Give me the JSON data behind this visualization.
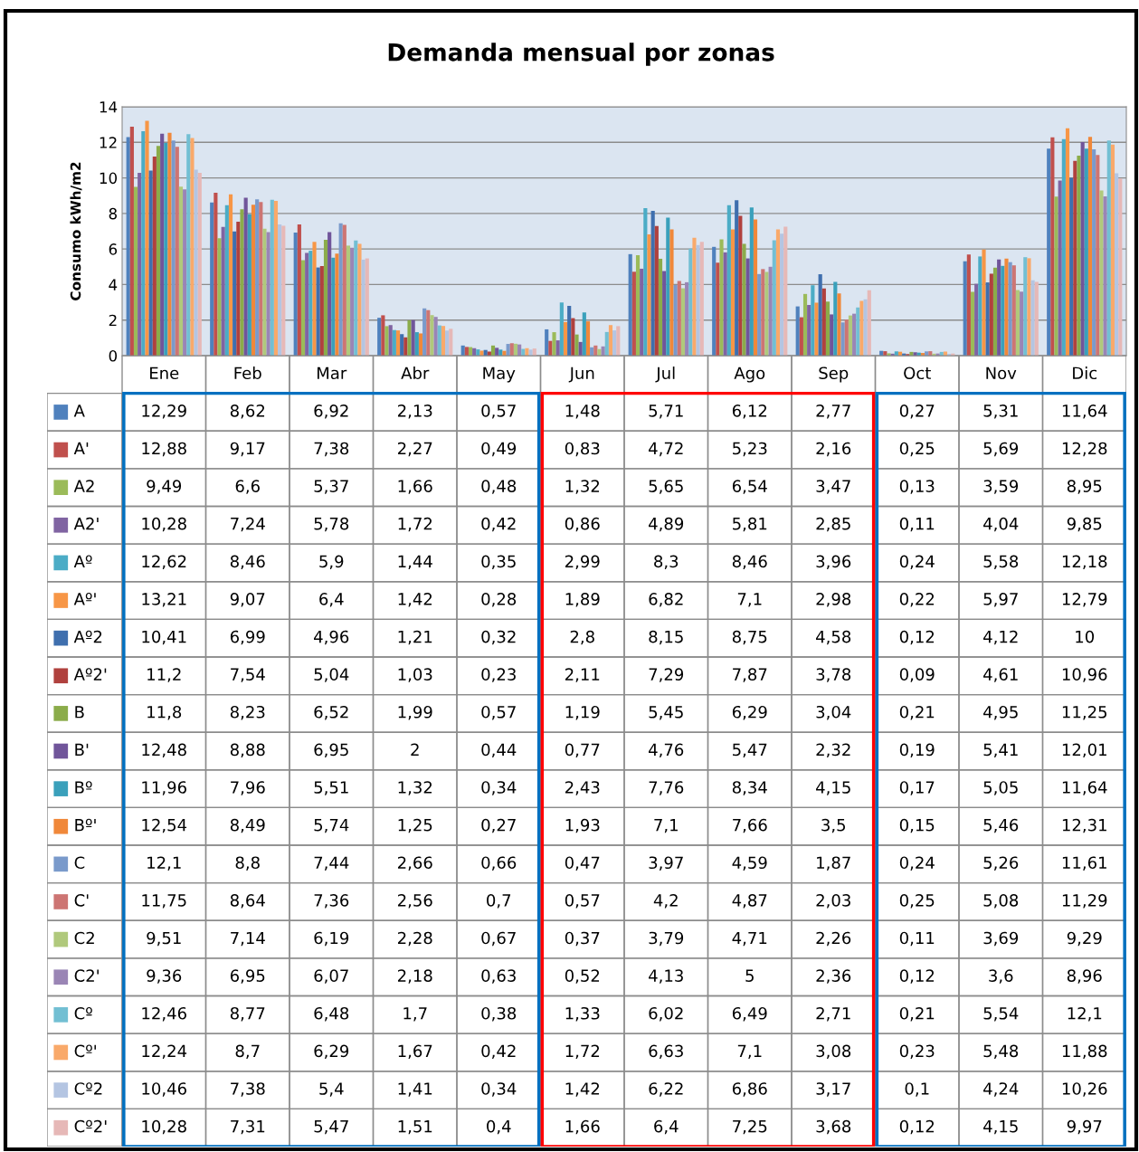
{
  "chart_data": {
    "type": "bar",
    "title": "Demanda mensual por zonas",
    "ylabel": "Consumo kWh/m2",
    "categories": [
      "Ene",
      "Feb",
      "Mar",
      "Abr",
      "May",
      "Jun",
      "Jul",
      "Ago",
      "Sep",
      "Oct",
      "Nov",
      "Dic"
    ],
    "ylim": [
      0,
      14
    ],
    "yticks": [
      0,
      2,
      4,
      6,
      8,
      10,
      12,
      14
    ],
    "grid": "y",
    "legend": "bottom",
    "series": [
      {
        "name": "A",
        "color": "#4f81bd",
        "values": [
          12.29,
          8.62,
          6.92,
          2.13,
          0.57,
          1.48,
          5.71,
          6.12,
          2.77,
          0.27,
          5.31,
          11.64
        ],
        "value_labels": [
          "12,29",
          "8,62",
          "6,92",
          "2,13",
          "0,57",
          "1,48",
          "5,71",
          "6,12",
          "2,77",
          "0,27",
          "5,31",
          "11,64"
        ]
      },
      {
        "name": "A'",
        "color": "#c0504d",
        "values": [
          12.88,
          9.17,
          7.38,
          2.27,
          0.49,
          0.83,
          4.72,
          5.23,
          2.16,
          0.25,
          5.69,
          12.28
        ],
        "value_labels": [
          "12,88",
          "9,17",
          "7,38",
          "2,27",
          "0,49",
          "0,83",
          "4,72",
          "5,23",
          "2,16",
          "0,25",
          "5,69",
          "12,28"
        ]
      },
      {
        "name": "A2",
        "color": "#9bbb59",
        "values": [
          9.49,
          6.6,
          5.37,
          1.66,
          0.48,
          1.32,
          5.65,
          6.54,
          3.47,
          0.13,
          3.59,
          8.95
        ],
        "value_labels": [
          "9,49",
          "6,6",
          "5,37",
          "1,66",
          "0,48",
          "1,32",
          "5,65",
          "6,54",
          "3,47",
          "0,13",
          "3,59",
          "8,95"
        ]
      },
      {
        "name": "A2'",
        "color": "#8064a2",
        "values": [
          10.28,
          7.24,
          5.78,
          1.72,
          0.42,
          0.86,
          4.89,
          5.81,
          2.85,
          0.11,
          4.04,
          9.85
        ],
        "value_labels": [
          "10,28",
          "7,24",
          "5,78",
          "1,72",
          "0,42",
          "0,86",
          "4,89",
          "5,81",
          "2,85",
          "0,11",
          "4,04",
          "9,85"
        ]
      },
      {
        "name": "Aº",
        "color": "#4bacc6",
        "values": [
          12.62,
          8.46,
          5.9,
          1.44,
          0.35,
          2.99,
          8.3,
          8.46,
          3.96,
          0.24,
          5.58,
          12.18
        ],
        "value_labels": [
          "12,62",
          "8,46",
          "5,9",
          "1,44",
          "0,35",
          "2,99",
          "8,3",
          "8,46",
          "3,96",
          "0,24",
          "5,58",
          "12,18"
        ]
      },
      {
        "name": "Aº'",
        "color": "#f79646",
        "values": [
          13.21,
          9.07,
          6.4,
          1.42,
          0.28,
          1.89,
          6.82,
          7.1,
          2.98,
          0.22,
          5.97,
          12.79
        ],
        "value_labels": [
          "13,21",
          "9,07",
          "6,4",
          "1,42",
          "0,28",
          "1,89",
          "6,82",
          "7,1",
          "2,98",
          "0,22",
          "5,97",
          "12,79"
        ]
      },
      {
        "name": "Aº2",
        "color": "#3f6fae",
        "values": [
          10.41,
          6.99,
          4.96,
          1.21,
          0.32,
          2.8,
          8.15,
          8.75,
          4.58,
          0.12,
          4.12,
          10
        ],
        "value_labels": [
          "10,41",
          "6,99",
          "4,96",
          "1,21",
          "0,32",
          "2,8",
          "8,15",
          "8,75",
          "4,58",
          "0,12",
          "4,12",
          "10"
        ]
      },
      {
        "name": "Aº2'",
        "color": "#b0413e",
        "values": [
          11.2,
          7.54,
          5.04,
          1.03,
          0.23,
          2.11,
          7.29,
          7.87,
          3.78,
          0.09,
          4.61,
          10.96
        ],
        "value_labels": [
          "11,2",
          "7,54",
          "5,04",
          "1,03",
          "0,23",
          "2,11",
          "7,29",
          "7,87",
          "3,78",
          "0,09",
          "4,61",
          "10,96"
        ]
      },
      {
        "name": "B",
        "color": "#8bac4a",
        "values": [
          11.8,
          8.23,
          6.52,
          1.99,
          0.57,
          1.19,
          5.45,
          6.29,
          3.04,
          0.21,
          4.95,
          11.25
        ],
        "value_labels": [
          "11,8",
          "8,23",
          "6,52",
          "1,99",
          "0,57",
          "1,19",
          "5,45",
          "6,29",
          "3,04",
          "0,21",
          "4,95",
          "11,25"
        ]
      },
      {
        "name": "B'",
        "color": "#70559a",
        "values": [
          12.48,
          8.88,
          6.95,
          2,
          0.44,
          0.77,
          4.76,
          5.47,
          2.32,
          0.19,
          5.41,
          12.01
        ],
        "value_labels": [
          "12,48",
          "8,88",
          "6,95",
          "2",
          "0,44",
          "0,77",
          "4,76",
          "5,47",
          "2,32",
          "0,19",
          "5,41",
          "12,01"
        ]
      },
      {
        "name": "Bº",
        "color": "#3aa0bb",
        "values": [
          11.96,
          7.96,
          5.51,
          1.32,
          0.34,
          2.43,
          7.76,
          8.34,
          4.15,
          0.17,
          5.05,
          11.64
        ],
        "value_labels": [
          "11,96",
          "7,96",
          "5,51",
          "1,32",
          "0,34",
          "2,43",
          "7,76",
          "8,34",
          "4,15",
          "0,17",
          "5,05",
          "11,64"
        ]
      },
      {
        "name": "Bº'",
        "color": "#f0883a",
        "values": [
          12.54,
          8.49,
          5.74,
          1.25,
          0.27,
          1.93,
          7.1,
          7.66,
          3.5,
          0.15,
          5.46,
          12.31
        ],
        "value_labels": [
          "12,54",
          "8,49",
          "5,74",
          "1,25",
          "0,27",
          "1,93",
          "7,1",
          "7,66",
          "3,5",
          "0,15",
          "5,46",
          "12,31"
        ]
      },
      {
        "name": "C",
        "color": "#7a9acb",
        "values": [
          12.1,
          8.8,
          7.44,
          2.66,
          0.66,
          0.47,
          3.97,
          4.59,
          1.87,
          0.24,
          5.26,
          11.61
        ],
        "value_labels": [
          "12,1",
          "8,8",
          "7,44",
          "2,66",
          "0,66",
          "0,47",
          "3,97",
          "4,59",
          "1,87",
          "0,24",
          "5,26",
          "11,61"
        ]
      },
      {
        "name": "C'",
        "color": "#cd7573",
        "values": [
          11.75,
          8.64,
          7.36,
          2.56,
          0.7,
          0.57,
          4.2,
          4.87,
          2.03,
          0.25,
          5.08,
          11.29
        ],
        "value_labels": [
          "11,75",
          "8,64",
          "7,36",
          "2,56",
          "0,7",
          "0,57",
          "4,2",
          "4,87",
          "2,03",
          "0,25",
          "5,08",
          "11,29"
        ]
      },
      {
        "name": "C2",
        "color": "#b0c97c",
        "values": [
          9.51,
          7.14,
          6.19,
          2.28,
          0.67,
          0.37,
          3.79,
          4.71,
          2.26,
          0.11,
          3.69,
          9.29
        ],
        "value_labels": [
          "9,51",
          "7,14",
          "6,19",
          "2,28",
          "0,67",
          "0,37",
          "3,79",
          "4,71",
          "2,26",
          "0,11",
          "3,69",
          "9,29"
        ]
      },
      {
        "name": "C2'",
        "color": "#9a85b5",
        "values": [
          9.36,
          6.95,
          6.07,
          2.18,
          0.63,
          0.52,
          4.13,
          5,
          2.36,
          0.12,
          3.6,
          8.96
        ],
        "value_labels": [
          "9,36",
          "6,95",
          "6,07",
          "2,18",
          "0,63",
          "0,52",
          "4,13",
          "5",
          "2,36",
          "0,12",
          "3,6",
          "8,96"
        ]
      },
      {
        "name": "Cº",
        "color": "#72bfd3",
        "values": [
          12.46,
          8.77,
          6.48,
          1.7,
          0.38,
          1.33,
          6.02,
          6.49,
          2.71,
          0.21,
          5.54,
          12.1
        ],
        "value_labels": [
          "12,46",
          "8,77",
          "6,48",
          "1,7",
          "0,38",
          "1,33",
          "6,02",
          "6,49",
          "2,71",
          "0,21",
          "5,54",
          "12,1"
        ]
      },
      {
        "name": "Cº'",
        "color": "#f9a96a",
        "values": [
          12.24,
          8.7,
          6.29,
          1.67,
          0.42,
          1.72,
          6.63,
          7.1,
          3.08,
          0.23,
          5.48,
          11.88
        ],
        "value_labels": [
          "12,24",
          "8,7",
          "6,29",
          "1,67",
          "0,42",
          "1,72",
          "6,63",
          "7,1",
          "3,08",
          "0,23",
          "5,48",
          "11,88"
        ]
      },
      {
        "name": "Cº2",
        "color": "#b4c5e2",
        "values": [
          10.46,
          7.38,
          5.4,
          1.41,
          0.34,
          1.42,
          6.22,
          6.86,
          3.17,
          0.1,
          4.24,
          10.26
        ],
        "value_labels": [
          "10,46",
          "7,38",
          "5,4",
          "1,41",
          "0,34",
          "1,42",
          "6,22",
          "6,86",
          "3,17",
          "0,1",
          "4,24",
          "10,26"
        ]
      },
      {
        "name": "Cº2'",
        "color": "#e6b8b7",
        "values": [
          10.28,
          7.31,
          5.47,
          1.51,
          0.4,
          1.66,
          6.4,
          7.25,
          3.68,
          0.12,
          4.15,
          9.97
        ],
        "value_labels": [
          "10,28",
          "7,31",
          "5,47",
          "1,51",
          "0,4",
          "1,66",
          "6,4",
          "7,25",
          "3,68",
          "0,12",
          "4,15",
          "9,97"
        ]
      }
    ]
  }
}
